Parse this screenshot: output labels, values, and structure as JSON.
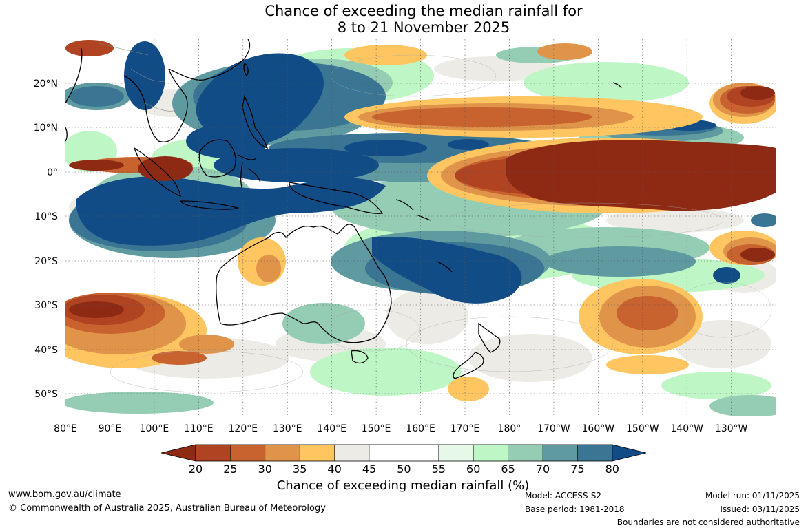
{
  "title": {
    "line1": "Chance of exceeding the median rainfall for",
    "line2": "8 to 21 November 2025"
  },
  "map": {
    "lon_labels": [
      "80°E",
      "90°E",
      "100°E",
      "110°E",
      "120°E",
      "130°E",
      "140°E",
      "150°E",
      "160°E",
      "170°E",
      "180°",
      "170°W",
      "160°W",
      "150°W",
      "140°W",
      "130°W"
    ],
    "lat_labels": [
      "20°N",
      "10°N",
      "0°",
      "10°S",
      "20°S",
      "30°S",
      "40°S",
      "50°S"
    ],
    "colors": {
      "c20": "#8e2a14",
      "c25": "#b04422",
      "c30": "#c8622e",
      "c35": "#e0944a",
      "c40": "#fec561",
      "c45": "#edebe6",
      "c55": "#ffffff",
      "c60": "#e6f8e8",
      "c65": "#bff6c6",
      "c70": "#94ccb4",
      "c75": "#5f9aa0",
      "c80": "#3a7594",
      "c85": "#124c86"
    }
  },
  "colorbar": {
    "ticks": [
      "20",
      "25",
      "30",
      "35",
      "40",
      "45",
      "50",
      "55",
      "60",
      "65",
      "70",
      "75",
      "80"
    ],
    "title": "Chance of exceeding median rainfall (%)"
  },
  "footer": {
    "website": "www.bom.gov.au/climate",
    "copyright": "© Commonwealth of Australia 2025, Australian Bureau of Meteorology",
    "model": "Model: ACCESS-S2",
    "base_period": "Base period: 1981-2018",
    "model_run": "Model run: 01/11/2025",
    "issued": "Issued: 03/11/2025",
    "disclaimer": "Boundaries are not considered authoritative"
  }
}
